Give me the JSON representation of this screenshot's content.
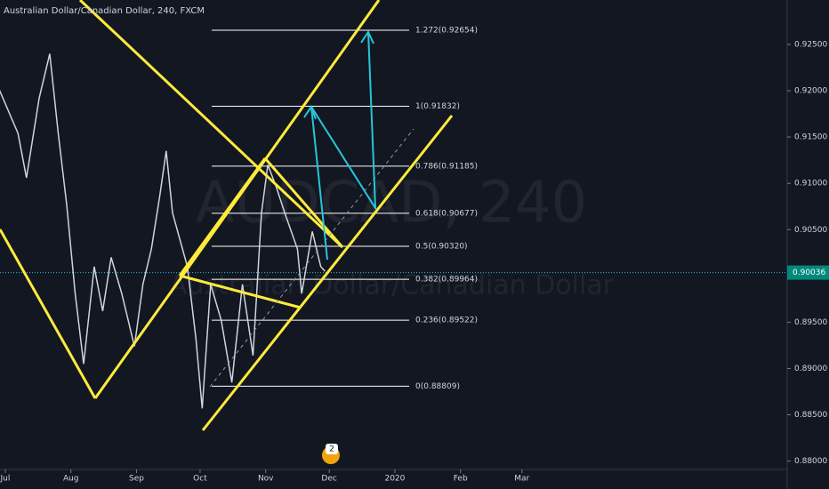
{
  "chart_data": {
    "type": "line",
    "title": "Australian Dollar/Canadian Dollar, 240, FXCM",
    "watermark": "AUDCAD, 240",
    "watermark_subtitle": "Australian Dollar/Canadian Dollar",
    "badge": "2",
    "series": [
      {
        "name": "AUDCAD",
        "color": "#d1d4dc",
        "values": [
          0.9202,
          0.9154,
          0.9106,
          0.9192,
          0.924,
          0.9154,
          0.9077,
          0.8981,
          0.8905,
          0.901,
          0.8962,
          0.902,
          0.8981,
          0.8924,
          0.8991,
          0.9029,
          0.9087,
          0.9135,
          0.9068,
          0.901,
          0.8933,
          0.8857,
          0.8991,
          0.8952,
          0.8885,
          0.8991,
          0.8914,
          0.9068,
          0.912,
          0.9096,
          0.9068,
          0.9029,
          0.8981,
          0.9048,
          0.901,
          0.9005
        ]
      }
    ],
    "x": [
      -3,
      6,
      10,
      16,
      21,
      25,
      29,
      33,
      37,
      42,
      46,
      50,
      55,
      61,
      65,
      69,
      73,
      76,
      79,
      86,
      90,
      93,
      97,
      102,
      107,
      112,
      117,
      121,
      124,
      128,
      132,
      138,
      140,
      145,
      149,
      151
    ],
    "xlim": [
      -2.5,
      369.3
    ],
    "xticks": [
      {
        "value": 0,
        "label": "Jul"
      },
      {
        "value": 31,
        "label": "Aug"
      },
      {
        "value": 62,
        "label": "Sep"
      },
      {
        "value": 92,
        "label": "Oct"
      },
      {
        "value": 123,
        "label": "Nov"
      },
      {
        "value": 153,
        "label": "Dec"
      },
      {
        "value": 184,
        "label": "2020"
      },
      {
        "value": 215,
        "label": "Feb"
      },
      {
        "value": 244,
        "label": "Mar"
      }
    ],
    "ylim": [
      0.8791,
      0.9298
    ],
    "yticks": [
      {
        "value": 0.88,
        "label": "0.88000"
      },
      {
        "value": 0.885,
        "label": "0.88500"
      },
      {
        "value": 0.89,
        "label": "0.89000"
      },
      {
        "value": 0.895,
        "label": "0.89500"
      },
      {
        "value": 0.9,
        "label": "0.90000"
      },
      {
        "value": 0.905,
        "label": "0.90500"
      },
      {
        "value": 0.91,
        "label": "0.91000"
      },
      {
        "value": 0.915,
        "label": "0.91500"
      },
      {
        "value": 0.92,
        "label": "0.92000"
      },
      {
        "value": 0.925,
        "label": "0.92500"
      }
    ],
    "current_price": {
      "value": 0.90036,
      "label": "0.90036"
    },
    "fib_levels": [
      {
        "value": 0.92654,
        "label": "1.272(0.92654)"
      },
      {
        "value": 0.91832,
        "label": "1(0.91832)"
      },
      {
        "value": 0.91185,
        "label": "0.786(0.91185)"
      },
      {
        "value": 0.90677,
        "label": "0.618(0.90677)"
      },
      {
        "value": 0.9032,
        "label": "0.5(0.90320)"
      },
      {
        "value": 0.89964,
        "label": "0.382(0.89964)"
      },
      {
        "value": 0.89522,
        "label": "0.236(0.89522)"
      },
      {
        "value": 0.88809,
        "label": "0(0.88809)"
      }
    ],
    "grid": false
  }
}
